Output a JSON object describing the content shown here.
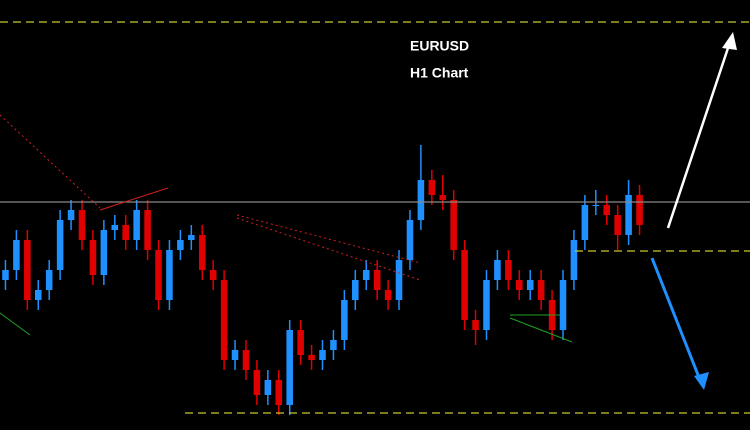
{
  "chart_data": {
    "type": "candlestick",
    "title": "EURUSD",
    "subtitle": "H1 Chart",
    "ylim": [
      0,
      430
    ],
    "up_color": "#1e90ff",
    "down_color": "#e00000",
    "open": [
      150,
      160,
      190,
      130,
      140,
      160,
      210,
      220,
      190,
      155,
      200,
      205,
      190,
      220,
      180,
      130,
      180,
      190,
      195,
      160,
      150,
      70,
      80,
      60,
      35,
      50,
      25,
      100,
      75,
      70,
      80,
      90,
      130,
      150,
      160,
      140,
      130,
      170,
      210,
      250,
      235,
      230,
      180,
      110,
      100,
      150,
      170,
      150,
      140,
      150,
      130,
      100,
      150,
      190,
      225,
      225,
      215,
      195,
      235
    ],
    "high": [
      170,
      200,
      200,
      150,
      170,
      220,
      230,
      230,
      200,
      210,
      215,
      215,
      230,
      230,
      190,
      190,
      200,
      205,
      205,
      170,
      160,
      90,
      90,
      70,
      60,
      60,
      110,
      110,
      85,
      90,
      100,
      140,
      160,
      170,
      170,
      150,
      180,
      220,
      285,
      260,
      255,
      240,
      190,
      120,
      160,
      180,
      180,
      160,
      160,
      160,
      140,
      160,
      200,
      235,
      240,
      235,
      225,
      250,
      245
    ],
    "low": [
      140,
      150,
      120,
      120,
      130,
      150,
      200,
      180,
      145,
      145,
      190,
      180,
      180,
      170,
      120,
      120,
      170,
      180,
      150,
      140,
      60,
      60,
      50,
      25,
      25,
      15,
      15,
      65,
      60,
      60,
      70,
      80,
      120,
      140,
      130,
      120,
      120,
      160,
      200,
      225,
      220,
      170,
      100,
      85,
      90,
      140,
      140,
      130,
      130,
      120,
      90,
      90,
      140,
      180,
      215,
      205,
      180,
      185,
      195
    ],
    "close": [
      160,
      190,
      130,
      140,
      160,
      210,
      220,
      190,
      155,
      200,
      205,
      190,
      220,
      180,
      130,
      180,
      190,
      195,
      160,
      150,
      70,
      80,
      60,
      35,
      50,
      25,
      100,
      75,
      70,
      80,
      90,
      130,
      150,
      160,
      140,
      130,
      170,
      210,
      250,
      235,
      230,
      180,
      110,
      100,
      150,
      170,
      150,
      140,
      150,
      130,
      100,
      150,
      190,
      225,
      225,
      215,
      195,
      235,
      205
    ],
    "hlines": [
      {
        "value": 408,
        "color": "#c8c832"
      },
      {
        "value": 179,
        "color": "#c8c832"
      },
      {
        "value": 17,
        "color": "#c8c832"
      },
      {
        "value": 228,
        "color": "#8a8a8a"
      }
    ]
  }
}
